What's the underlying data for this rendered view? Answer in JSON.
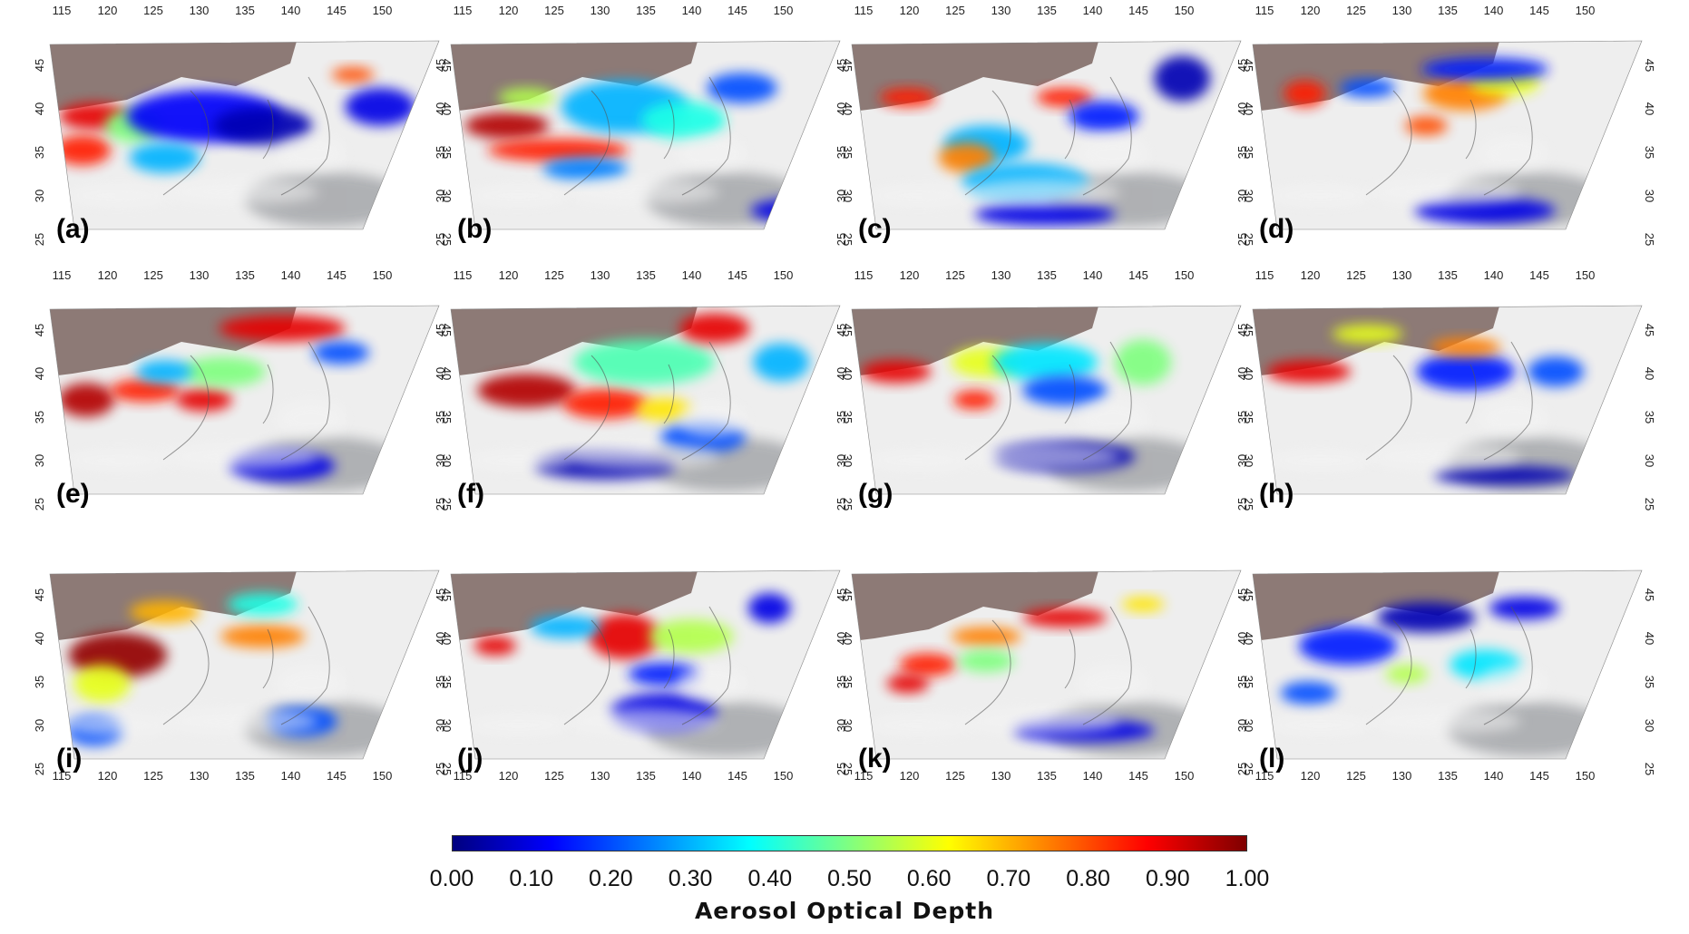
{
  "figure": {
    "panels": [
      {
        "label": "(a)",
        "aod_plumes": [
          [
            0.12,
            0.4,
            0.1,
            0.07,
            0.9
          ],
          [
            0.09,
            0.58,
            0.08,
            0.08,
            0.85
          ],
          [
            0.22,
            0.45,
            0.08,
            0.09,
            0.5
          ],
          [
            0.4,
            0.4,
            0.22,
            0.14,
            0.12
          ],
          [
            0.55,
            0.45,
            0.14,
            0.1,
            0.05
          ],
          [
            0.78,
            0.18,
            0.06,
            0.04,
            0.8
          ],
          [
            0.85,
            0.35,
            0.1,
            0.1,
            0.1
          ],
          [
            0.3,
            0.62,
            0.1,
            0.08,
            0.3
          ]
        ]
      },
      {
        "label": "(b)",
        "aod_plumes": [
          [
            0.15,
            0.45,
            0.12,
            0.07,
            0.95
          ],
          [
            0.28,
            0.58,
            0.2,
            0.06,
            0.85
          ],
          [
            0.45,
            0.35,
            0.18,
            0.14,
            0.3
          ],
          [
            0.6,
            0.42,
            0.12,
            0.1,
            0.4
          ],
          [
            0.35,
            0.68,
            0.12,
            0.06,
            0.25
          ],
          [
            0.75,
            0.25,
            0.1,
            0.08,
            0.2
          ],
          [
            0.2,
            0.3,
            0.08,
            0.05,
            0.55
          ],
          [
            0.88,
            0.9,
            0.12,
            0.06,
            0.1
          ]
        ]
      },
      {
        "label": "(c)",
        "aod_plumes": [
          [
            0.15,
            0.3,
            0.08,
            0.05,
            0.85
          ],
          [
            0.35,
            0.55,
            0.12,
            0.1,
            0.3
          ],
          [
            0.3,
            0.62,
            0.08,
            0.08,
            0.75
          ],
          [
            0.55,
            0.3,
            0.08,
            0.05,
            0.85
          ],
          [
            0.45,
            0.75,
            0.18,
            0.1,
            0.3
          ],
          [
            0.65,
            0.4,
            0.1,
            0.08,
            0.15
          ],
          [
            0.85,
            0.2,
            0.08,
            0.12,
            0.05
          ],
          [
            0.5,
            0.92,
            0.2,
            0.06,
            0.1
          ]
        ]
      },
      {
        "label": "(d)",
        "aod_plumes": [
          [
            0.14,
            0.28,
            0.06,
            0.07,
            0.85
          ],
          [
            0.55,
            0.28,
            0.12,
            0.09,
            0.75
          ],
          [
            0.65,
            0.22,
            0.1,
            0.07,
            0.6
          ],
          [
            0.45,
            0.45,
            0.06,
            0.05,
            0.8
          ],
          [
            0.6,
            0.15,
            0.18,
            0.06,
            0.15
          ],
          [
            0.3,
            0.25,
            0.08,
            0.05,
            0.2
          ],
          [
            0.6,
            0.9,
            0.2,
            0.07,
            0.1
          ]
        ]
      },
      {
        "label": "(e)",
        "aod_plumes": [
          [
            0.1,
            0.5,
            0.08,
            0.09,
            0.95
          ],
          [
            0.25,
            0.45,
            0.1,
            0.06,
            0.85
          ],
          [
            0.4,
            0.5,
            0.08,
            0.06,
            0.9
          ],
          [
            0.45,
            0.35,
            0.12,
            0.08,
            0.5
          ],
          [
            0.6,
            0.12,
            0.18,
            0.07,
            0.9
          ],
          [
            0.3,
            0.35,
            0.08,
            0.06,
            0.3
          ],
          [
            0.6,
            0.85,
            0.15,
            0.08,
            0.1
          ],
          [
            0.75,
            0.25,
            0.08,
            0.06,
            0.2
          ]
        ]
      },
      {
        "label": "(f)",
        "aod_plumes": [
          [
            0.2,
            0.45,
            0.14,
            0.09,
            0.95
          ],
          [
            0.4,
            0.52,
            0.12,
            0.08,
            0.85
          ],
          [
            0.5,
            0.3,
            0.2,
            0.12,
            0.45
          ],
          [
            0.68,
            0.12,
            0.1,
            0.08,
            0.9
          ],
          [
            0.55,
            0.55,
            0.08,
            0.06,
            0.65
          ],
          [
            0.65,
            0.7,
            0.12,
            0.08,
            0.2
          ],
          [
            0.85,
            0.3,
            0.08,
            0.1,
            0.3
          ],
          [
            0.4,
            0.85,
            0.2,
            0.07,
            0.05
          ]
        ]
      },
      {
        "label": "(g)",
        "aod_plumes": [
          [
            0.12,
            0.35,
            0.1,
            0.06,
            0.9
          ],
          [
            0.35,
            0.3,
            0.1,
            0.08,
            0.6
          ],
          [
            0.5,
            0.3,
            0.15,
            0.1,
            0.35
          ],
          [
            0.55,
            0.45,
            0.12,
            0.08,
            0.2
          ],
          [
            0.75,
            0.3,
            0.08,
            0.12,
            0.5
          ],
          [
            0.55,
            0.8,
            0.2,
            0.08,
            0.05
          ],
          [
            0.32,
            0.5,
            0.06,
            0.05,
            0.85
          ]
        ]
      },
      {
        "label": "(h)",
        "aod_plumes": [
          [
            0.15,
            0.35,
            0.12,
            0.06,
            0.9
          ],
          [
            0.3,
            0.15,
            0.1,
            0.05,
            0.6
          ],
          [
            0.55,
            0.35,
            0.14,
            0.1,
            0.15
          ],
          [
            0.55,
            0.22,
            0.1,
            0.05,
            0.75
          ],
          [
            0.78,
            0.35,
            0.08,
            0.08,
            0.2
          ],
          [
            0.65,
            0.9,
            0.2,
            0.05,
            0.05
          ]
        ]
      },
      {
        "label": "(i)",
        "aod_plumes": [
          [
            0.18,
            0.45,
            0.14,
            0.12,
            0.98
          ],
          [
            0.14,
            0.6,
            0.08,
            0.1,
            0.6
          ],
          [
            0.3,
            0.22,
            0.1,
            0.06,
            0.7
          ],
          [
            0.55,
            0.35,
            0.12,
            0.06,
            0.75
          ],
          [
            0.55,
            0.18,
            0.1,
            0.06,
            0.4
          ],
          [
            0.12,
            0.85,
            0.08,
            0.08,
            0.2
          ],
          [
            0.65,
            0.8,
            0.1,
            0.08,
            0.2
          ]
        ]
      },
      {
        "label": "(j)",
        "aod_plumes": [
          [
            0.45,
            0.35,
            0.1,
            0.12,
            0.9
          ],
          [
            0.62,
            0.35,
            0.12,
            0.09,
            0.55
          ],
          [
            0.55,
            0.55,
            0.1,
            0.06,
            0.15
          ],
          [
            0.12,
            0.4,
            0.06,
            0.05,
            0.9
          ],
          [
            0.3,
            0.3,
            0.1,
            0.06,
            0.3
          ],
          [
            0.55,
            0.75,
            0.15,
            0.1,
            0.1
          ],
          [
            0.82,
            0.2,
            0.06,
            0.08,
            0.1
          ]
        ]
      },
      {
        "label": "(k)",
        "aod_plumes": [
          [
            0.2,
            0.5,
            0.08,
            0.06,
            0.85
          ],
          [
            0.15,
            0.6,
            0.06,
            0.05,
            0.9
          ],
          [
            0.35,
            0.35,
            0.1,
            0.05,
            0.75
          ],
          [
            0.55,
            0.25,
            0.12,
            0.05,
            0.9
          ],
          [
            0.35,
            0.48,
            0.08,
            0.06,
            0.5
          ],
          [
            0.6,
            0.85,
            0.2,
            0.06,
            0.1
          ],
          [
            0.75,
            0.18,
            0.06,
            0.04,
            0.65
          ]
        ]
      },
      {
        "label": "(l)",
        "aod_plumes": [
          [
            0.25,
            0.4,
            0.14,
            0.1,
            0.15
          ],
          [
            0.45,
            0.25,
            0.14,
            0.08,
            0.05
          ],
          [
            0.6,
            0.5,
            0.1,
            0.08,
            0.35
          ],
          [
            0.4,
            0.55,
            0.06,
            0.05,
            0.55
          ],
          [
            0.7,
            0.2,
            0.1,
            0.06,
            0.1
          ],
          [
            0.15,
            0.65,
            0.08,
            0.06,
            0.2
          ]
        ]
      }
    ],
    "lon_ticks": [
      "115",
      "120",
      "125",
      "130",
      "135",
      "140",
      "145",
      "150"
    ],
    "lat_ticks": [
      "45",
      "40",
      "35",
      "30",
      "25"
    ],
    "colorbar": {
      "ticks": [
        "0.00",
        "0.10",
        "0.20",
        "0.30",
        "0.40",
        "0.50",
        "0.60",
        "0.70",
        "0.80",
        "0.90",
        "1.00"
      ],
      "title": "Aerosol Optical Depth",
      "colors": [
        "#00007f",
        "#0000ff",
        "#0080ff",
        "#00ffff",
        "#80ff80",
        "#ffff00",
        "#ff8000",
        "#ff0000",
        "#7f0000"
      ]
    },
    "surface_colors": {
      "land": "#8d7a76",
      "cloud": "#eeeeee",
      "ocean": "#3b3f49"
    }
  }
}
